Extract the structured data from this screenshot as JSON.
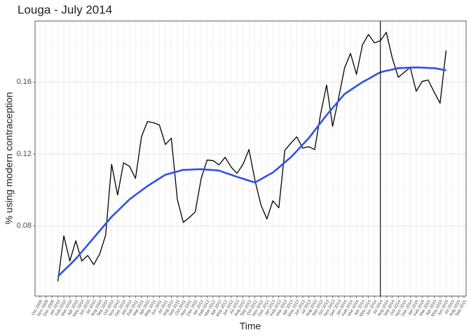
{
  "chart_data": {
    "type": "line",
    "title": "Louga - July 2014",
    "x_label": "Time",
    "y_label": "% using modern contraception",
    "categories": [
      "Oct 2009",
      "Nov 2009",
      "Dec 2009",
      "Jan 2010",
      "Feb 2010",
      "Mar 2010",
      "Apr 2010",
      "May 2010",
      "Jun 2010",
      "Jul 2010",
      "Aug 2010",
      "Sep 2010",
      "Oct 2010",
      "Nov 2010",
      "Dec 2010",
      "Jan 2011",
      "Feb 2011",
      "Mar 2011",
      "Apr 2011",
      "May 2011",
      "Jun 2011",
      "Jul 2011",
      "Aug 2011",
      "Sep 2011",
      "Oct 2011",
      "Nov 2011",
      "Dec 2011",
      "Jan 2012",
      "Feb 2012",
      "Mar 2012",
      "Apr 2012",
      "May 2012",
      "Jun 2012",
      "Jul 2012",
      "Aug 2012",
      "Sep 2012",
      "Oct 2012",
      "Nov 2012",
      "Dec 2012",
      "Jan 2013",
      "Feb 2013",
      "Mar 2013",
      "Apr 2013",
      "May 2013",
      "Jun 2013",
      "Jul 2013",
      "Aug 2013",
      "Sep 2013",
      "Oct 2013",
      "Nov 2013",
      "Dec 2013",
      "Jan 2014",
      "Feb 2014",
      "Mar 2014",
      "Apr 2014",
      "May 2014",
      "Jun 2014",
      "Jul 2014",
      "Aug 2014",
      "Sep 2014",
      "Oct 2014",
      "Nov 2014",
      "Dec 2014",
      "Jan 2015",
      "Feb 2015",
      "Mar 2015",
      "Apr 2015",
      "May 2015",
      "Jun 2015",
      "Jul 2015",
      "Aug 2015",
      "Sep 2015"
    ],
    "series": [
      {
        "color": "#000000",
        "width": 1.3,
        "values": [
          null,
          null,
          null,
          0.0492,
          0.0745,
          0.0605,
          0.0718,
          0.0605,
          0.0636,
          0.0585,
          0.0644,
          0.0749,
          0.1143,
          0.0972,
          0.1151,
          0.1132,
          0.1065,
          0.1296,
          0.1381,
          0.1374,
          0.1362,
          0.1253,
          0.1288,
          0.0948,
          0.082,
          0.0847,
          0.0878,
          0.1065,
          0.1167,
          0.1163,
          0.114,
          0.1182,
          0.1128,
          0.1093,
          0.1143,
          0.1225,
          0.1054,
          0.0917,
          0.0839,
          0.094,
          0.0901,
          0.1221,
          0.126,
          0.1296,
          0.1233,
          0.1241,
          0.1225,
          0.1424,
          0.1584,
          0.1354,
          0.151,
          0.1678,
          0.176,
          0.1643,
          0.1807,
          0.1865,
          0.1819,
          0.183,
          0.1877,
          0.1733,
          0.1627,
          0.1655,
          0.1682,
          0.1549,
          0.1604,
          0.1612,
          0.1545,
          0.1483,
          0.1776,
          null,
          null,
          null
        ]
      },
      {
        "color": "#3050ee",
        "width": 2.6,
        "values": [
          null,
          null,
          null,
          0.0519,
          0.0552,
          0.0584,
          0.0617,
          0.0656,
          0.0695,
          0.0734,
          0.0773,
          0.0812,
          0.0851,
          0.0883,
          0.0916,
          0.0948,
          0.0973,
          0.0997,
          0.1022,
          0.1043,
          0.1064,
          0.1085,
          0.1094,
          0.1103,
          0.1112,
          0.1113,
          0.1115,
          0.1116,
          0.1113,
          0.1111,
          0.1108,
          0.1096,
          0.1085,
          0.1073,
          0.1063,
          0.1052,
          0.1042,
          0.106,
          0.1079,
          0.1097,
          0.1125,
          0.1154,
          0.1182,
          0.1217,
          0.1253,
          0.1288,
          0.1331,
          0.1374,
          0.1417,
          0.1456,
          0.1495,
          0.1534,
          0.1556,
          0.1578,
          0.16,
          0.1618,
          0.1637,
          0.1655,
          0.1663,
          0.167,
          0.1678,
          0.1679,
          0.1681,
          0.1682,
          0.1681,
          0.1679,
          0.1678,
          0.1672,
          0.1666,
          null,
          null,
          null
        ]
      }
    ],
    "vline": "Jul 2014",
    "ylim": [
      0.041,
      0.194
    ],
    "yticks": [
      0.08,
      0.12,
      0.16
    ],
    "grid": true
  }
}
